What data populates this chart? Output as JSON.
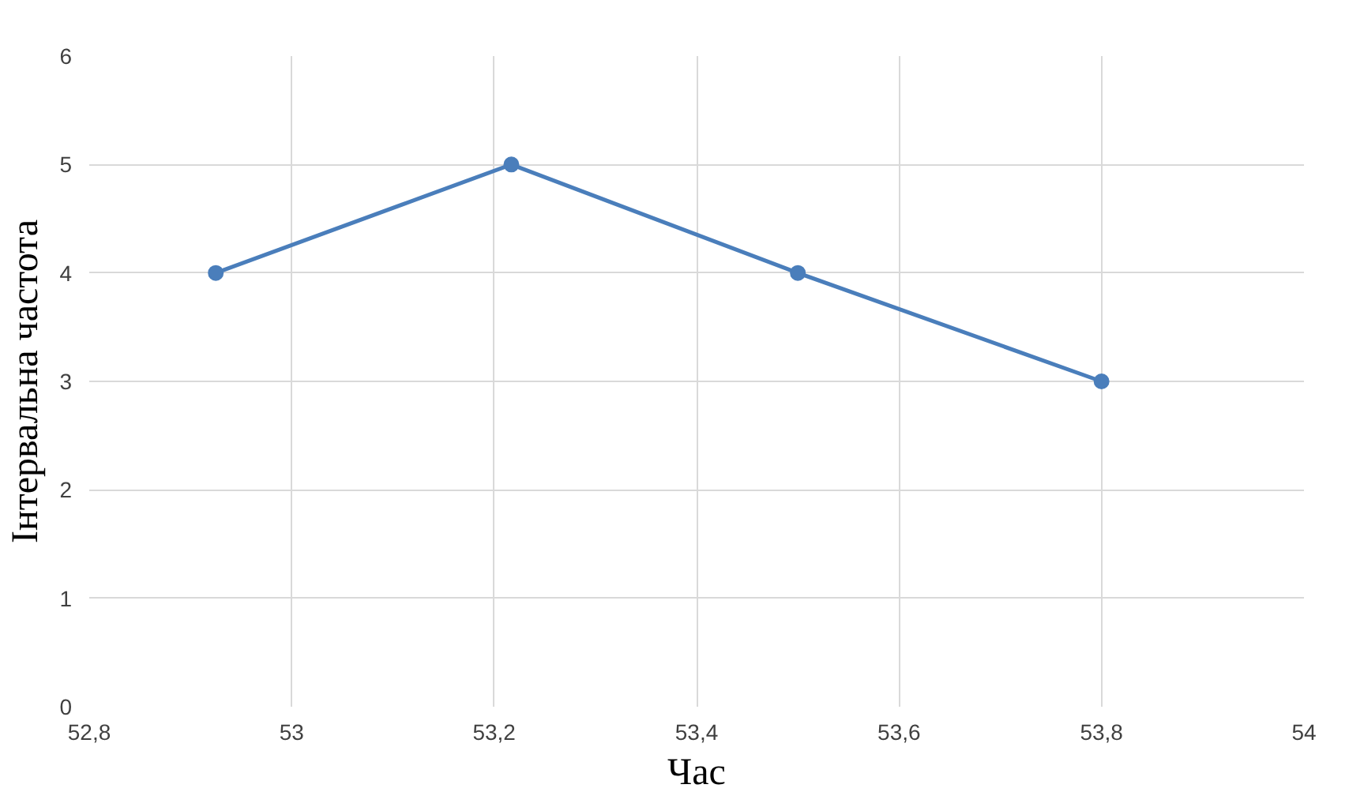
{
  "chart_data": {
    "type": "line",
    "xlabel": "Час",
    "ylabel": "Інтервальна частота",
    "x": [
      52.925,
      53.217,
      53.5,
      53.8
    ],
    "series": [
      {
        "color": "#4a7ebb",
        "values": [
          4,
          5,
          4,
          3
        ]
      }
    ],
    "xlim": [
      52.8,
      54
    ],
    "xticks": [
      {
        "value": 52.8,
        "label": "52,8"
      },
      53,
      {
        "value": 53.2,
        "label": "53,2"
      },
      {
        "value": 53.4,
        "label": "53,4"
      },
      {
        "value": 53.6,
        "label": "53,6"
      },
      {
        "value": 53.8,
        "label": "53,8"
      },
      54
    ],
    "ylim": [
      0,
      6
    ],
    "yticks": [
      0,
      1,
      2,
      3,
      4,
      5,
      6
    ],
    "grid": true,
    "marker": "circle",
    "line_style": "solid"
  }
}
